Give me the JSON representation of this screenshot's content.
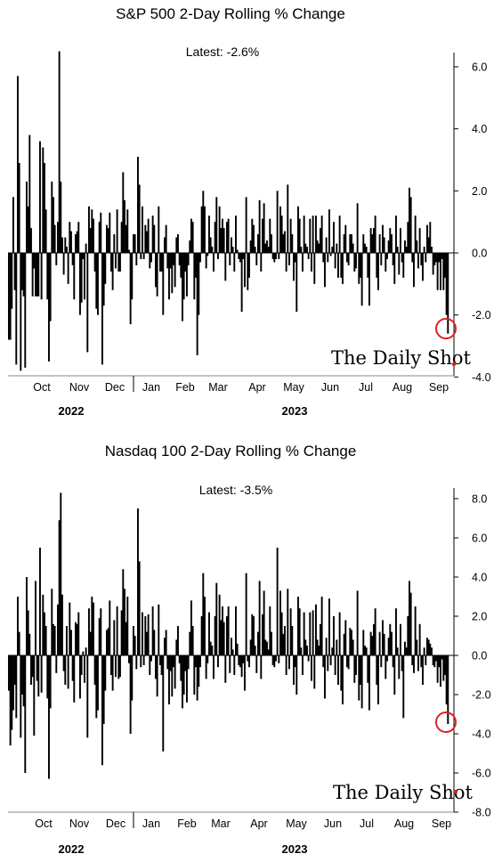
{
  "chart_data": [
    {
      "type": "bar",
      "title": "S&P 500 2-Day Rolling % Change",
      "annotation": "Latest:  -2.6%",
      "latest_value": -2.6,
      "ylim": [
        -4.0,
        6.5
      ],
      "yticks": [
        "6.0",
        "4.0",
        "2.0",
        "0.0",
        "-2.0",
        "-4.0"
      ],
      "ytick_values": [
        6,
        4,
        2,
        0,
        -2,
        -4
      ],
      "xlabels": [
        "Oct",
        "Nov",
        "Dec",
        "Jan",
        "Feb",
        "Mar",
        "Apr",
        "May",
        "Jun",
        "Jul",
        "Aug",
        "Sep"
      ],
      "years": [
        "2022",
        "2023"
      ],
      "values": [
        -2.8,
        -2.8,
        -1.8,
        1.8,
        -1.2,
        -3.6,
        5.7,
        2.9,
        -3.8,
        -1.2,
        -1.4,
        -3.7,
        2.3,
        1.5,
        3.8,
        0.8,
        -1.4,
        -0.5,
        -1.4,
        -1.4,
        -1.4,
        3.6,
        -1.5,
        3.4,
        2.9,
        1.4,
        -1.5,
        -3.5,
        -2.2,
        2.3,
        1.8,
        0.9,
        -0.4,
        1.0,
        6.5,
        2.3,
        0.5,
        -0.7,
        0.5,
        0.2,
        -1.0,
        1.0,
        0.7,
        -0.4,
        -1.5,
        0.6,
        0.7,
        1.0,
        -2.0,
        -1.6,
        -0.2,
        -1.5,
        0.3,
        -3.2,
        1.5,
        0.8,
        1.4,
        1.1,
        -0.6,
        -1.8,
        -2.0,
        1.0,
        1.3,
        -3.6,
        -1.7,
        -1.0,
        0.9,
        0.8,
        1.3,
        -0.6,
        -1.2,
        0.6,
        -0.5,
        1.4,
        -0.6,
        -0.6,
        1.0,
        2.6,
        1.7,
        0.9,
        1.4,
        0.1,
        -2.3,
        -1.5,
        0.6,
        0.6,
        -0.4,
        3.1,
        2.2,
        -0.2,
        1.5,
        -0.2,
        0.9,
        0.7,
        1.1,
        -0.5,
        -0.3,
        1.2,
        0.9,
        -1.1,
        -1.4,
        1.5,
        -0.6,
        -0.6,
        -2.0,
        0.5,
        0.9,
        -0.5,
        -1.5,
        -0.5,
        -1.3,
        -0.4,
        -1.1,
        0.5,
        0.6,
        -0.4,
        -0.8,
        -2.2,
        -1.5,
        -0.6,
        -1.4,
        -0.4,
        0.4,
        1.1,
        1.0,
        -1.5,
        -0.8,
        -3.3,
        -2.0,
        -0.3,
        1.5,
        2.0,
        1.5,
        -0.5,
        -0.1,
        1.2,
        0.5,
        0.2,
        -0.6,
        1.0,
        1.8,
        -0.2,
        1.5,
        0.8,
        1.1,
        0.8,
        -0.9,
        1.0,
        1.1,
        -0.4,
        0.5,
        0.2,
        -0.6,
        1.2,
        0.1,
        -0.2,
        -0.3,
        -1.9,
        -0.2,
        -1.1,
        1.8,
        -1.2,
        -0.8,
        0.4,
        1.1,
        0.9,
        0.2,
        -0.4,
        0.6,
        1.7,
        -0.6,
        1.1,
        1.6,
        0.3,
        0.4,
        0.2,
        1.1,
        0.6,
        -0.2,
        -0.3,
        -0.2,
        2.0,
        -0.2,
        1.5,
        1.2,
        0.6,
        0.7,
        -0.6,
        2.2,
        -0.4,
        1.1,
        0.6,
        -0.9,
        -0.3,
        -1.9,
        1.5,
        1.1,
        0.2,
        -0.6,
        1.2,
        0.3,
        0.2,
        -0.2,
        1.1,
        -0.6,
        1.2,
        -1.0,
        1.2,
        0.4,
        0.3,
        0.8,
        1.2,
        -0.3,
        -1.1,
        0.5,
        -0.3,
        1.4,
        -0.1,
        0.2,
        1.0,
        -0.5,
        0.3,
        -0.8,
        1.2,
        -0.8,
        -1.0,
        0.6,
        0.9,
        -0.3,
        -0.4,
        0.6,
        0.6,
        0.3,
        -0.6,
        -0.5,
        1.6,
        -1.0,
        -0.8,
        -1.7,
        0.6,
        0.3,
        0.2,
        -0.8,
        -1.7,
        0.8,
        0.6,
        0.8,
        1.2,
        -0.8,
        -1.2,
        0.6,
        -0.4,
        0.9,
        0.5,
        -0.6,
        -0.2,
        0.4,
        0.8,
        0.6,
        -0.4,
        -1.0,
        1.2,
        0.2,
        -0.7,
        0.8,
        -0.3,
        -0.8,
        0.4,
        0.2,
        1.0,
        2.1,
        1.8,
        -0.3,
        -1.1,
        1.2,
        0.4,
        -0.5,
        0.8,
        -0.4,
        -0.9,
        0.2,
        -0.3,
        0.9,
        0.5,
        1.0,
        0.2,
        -0.7,
        -0.4,
        -0.3,
        -1.2,
        -0.3,
        -1.2,
        -0.2,
        -1.2,
        -0.8,
        -2.0,
        -2.6
      ],
      "marker_color": "#e02020",
      "bar_color": "#000000"
    },
    {
      "type": "bar",
      "title": "Nasdaq 100 2-Day Rolling % Change",
      "annotation": "Latest:  -3.5%",
      "latest_value": -3.5,
      "ylim": [
        -8.0,
        8.4
      ],
      "yticks": [
        "8.0",
        "6.0",
        "4.0",
        "2.0",
        "0.0",
        "-2.0",
        "-4.0",
        "-6.0",
        "-8.0"
      ],
      "ytick_values": [
        8,
        6,
        4,
        2,
        0,
        -2,
        -4,
        -6,
        -8
      ],
      "xlabels": [
        "Oct",
        "Nov",
        "Dec",
        "Jan",
        "Feb",
        "Mar",
        "Apr",
        "May",
        "Jun",
        "Jul",
        "Aug",
        "Sep"
      ],
      "years": [
        "2022",
        "2023"
      ],
      "values": [
        -1.8,
        -4.6,
        -3.8,
        -2.8,
        -1.5,
        -3.2,
        3.0,
        1.2,
        -4.2,
        -2.0,
        -2.6,
        -6.0,
        4.0,
        2.3,
        1.1,
        -1.5,
        -1.1,
        -4.1,
        3.8,
        -1.3,
        -2.1,
        5.5,
        -1.9,
        3.1,
        2.2,
        1.5,
        -2.2,
        -6.3,
        -2.7,
        3.4,
        1.6,
        1.5,
        -0.9,
        2.6,
        6.9,
        8.3,
        3.1,
        -0.8,
        -1.5,
        1.5,
        -1.7,
        2.7,
        1.3,
        -1.3,
        -2.4,
        1.7,
        1.6,
        2.2,
        -2.2,
        -1.0,
        0.2,
        -1.4,
        0.4,
        -4.2,
        2.4,
        1.2,
        3.0,
        2.7,
        -1.5,
        -3.2,
        -2.8,
        1.9,
        2.4,
        -5.6,
        -3.5,
        -1.8,
        1.3,
        1.4,
        2.8,
        -1.0,
        -1.8,
        1.8,
        -1.1,
        2.5,
        -1.2,
        -1.1,
        2.3,
        4.4,
        3.4,
        1.7,
        3.0,
        -0.4,
        -4.0,
        -2.3,
        1.5,
        1.0,
        -0.7,
        7.5,
        4.8,
        -0.6,
        2.2,
        -0.5,
        2.0,
        1.2,
        2.1,
        -1.0,
        -0.3,
        2.5,
        1.3,
        -1.2,
        -2.1,
        2.6,
        -0.5,
        -1.0,
        -4.9,
        0.9,
        1.3,
        -0.7,
        -2.5,
        -0.8,
        -2.1,
        -0.6,
        -1.7,
        0.8,
        1.5,
        -0.4,
        -1.3,
        -2.7,
        -2.0,
        -0.8,
        -2.4,
        -0.7,
        1.2,
        2.8,
        1.5,
        -2.0,
        -0.6,
        -2.3,
        -1.6,
        -0.6,
        2.0,
        4.2,
        3.0,
        -1.2,
        -0.4,
        2.2,
        0.7,
        0.5,
        -1.2,
        2.0,
        3.7,
        -0.6,
        3.1,
        1.8,
        2.5,
        1.7,
        -1.4,
        2.0,
        2.5,
        -0.9,
        0.9,
        0.3,
        -1.0,
        2.5,
        0.6,
        -0.5,
        -0.6,
        -1.1,
        -0.4,
        -1.8,
        4.2,
        -0.3,
        -0.6,
        0.8,
        2.1,
        2.0,
        0.5,
        -0.9,
        1.2,
        3.8,
        -1.2,
        2.1,
        3.3,
        0.8,
        0.7,
        0.3,
        2.5,
        1.2,
        -0.5,
        -0.6,
        -0.3,
        5.5,
        -0.4,
        3.3,
        2.2,
        1.1,
        1.5,
        -1.0,
        3.4,
        -0.7,
        2.4,
        1.5,
        -1.5,
        -0.6,
        -2.0,
        3.0,
        2.4,
        0.4,
        -1.0,
        2.2,
        0.8,
        0.5,
        -0.3,
        2.2,
        -1.3,
        2.3,
        -1.7,
        2.6,
        0.8,
        0.5,
        1.6,
        3.0,
        -0.6,
        -2.2,
        0.9,
        -0.8,
        2.9,
        -0.5,
        0.4,
        2.0,
        -1.0,
        0.8,
        -1.5,
        2.2,
        -1.8,
        -2.5,
        1.1,
        1.8,
        -0.6,
        -0.7,
        1.4,
        1.3,
        0.8,
        -1.4,
        -1.0,
        3.3,
        -2.3,
        -1.5,
        -2.7,
        1.3,
        0.5,
        0.4,
        -1.4,
        -2.8,
        1.2,
        1.0,
        1.6,
        2.4,
        -1.5,
        -2.5,
        1.2,
        -0.6,
        1.8,
        1.1,
        -1.2,
        -0.3,
        0.9,
        1.6,
        1.2,
        -0.6,
        -2.0,
        2.4,
        0.4,
        -1.2,
        1.6,
        -0.8,
        -3.2,
        0.7,
        0.4,
        2.0,
        3.8,
        3.2,
        -0.5,
        -0.9,
        2.5,
        0.8,
        -0.8,
        1.6,
        -0.6,
        -1.5,
        0.4,
        -0.5,
        0.9,
        0.8,
        0.6,
        0.4,
        -0.5,
        -0.6,
        -0.3,
        -1.4,
        -0.6,
        -1.6,
        -0.2,
        -1.3,
        -1.0,
        -2.5,
        -3.5
      ],
      "marker_color": "#e02020",
      "bar_color": "#000000"
    }
  ],
  "watermark": "The Daily Shot"
}
